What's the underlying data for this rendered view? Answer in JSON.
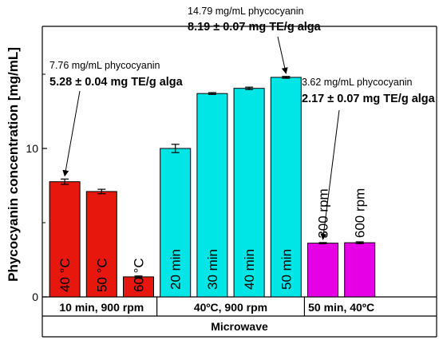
{
  "chart_data": {
    "type": "bar",
    "ylabel": "Phycocyanin concentration [mg/mL]",
    "ylim": [
      0,
      18.7
    ],
    "yticks": [
      0,
      10
    ],
    "grid": false,
    "categories": [
      "40 °C",
      "50 °C",
      "60 °C",
      "20 min",
      "30 min",
      "40 min",
      "50 min",
      "300 rpm",
      "600 rpm"
    ],
    "values": [
      7.76,
      7.1,
      1.35,
      10.0,
      13.7,
      14.05,
      14.79,
      3.62,
      3.65
    ],
    "errors": [
      0.18,
      0.15,
      0.06,
      0.28,
      0.06,
      0.08,
      0.06,
      0.04,
      0.06
    ],
    "bar_colors": [
      "#e8170d",
      "#e8170d",
      "#e8170d",
      "#00e5e5",
      "#00e5e5",
      "#00e5e5",
      "#00e5e5",
      "#e600e6",
      "#e600e6"
    ],
    "groups": [
      {
        "label": "10 min, 900 rpm",
        "start": 0,
        "end": 2
      },
      {
        "label": "40ºC, 900 rpm",
        "start": 3,
        "end": 6
      },
      {
        "label": "50 min, 40ºC",
        "start": 7,
        "end": 8
      }
    ],
    "group_super_label": "Microwave",
    "annotations": [
      {
        "bar": 0,
        "line1": "7.76 mg/mL phycocyanin",
        "line2": "5.28 ± 0.04 mg TE/g alga"
      },
      {
        "bar": 6,
        "line1": "14.79 mg/mL phycocyanin",
        "line2": "8.19 ± 0.07 mg TE/g alga"
      },
      {
        "bar": 7,
        "line1": "3.62 mg/mL phycocyanin",
        "line2": "2.17 ± 0.07 mg TE/g alga"
      }
    ],
    "colors": {
      "red": "#e8170d",
      "cyan": "#00e5e5",
      "magenta": "#e600e6"
    }
  }
}
